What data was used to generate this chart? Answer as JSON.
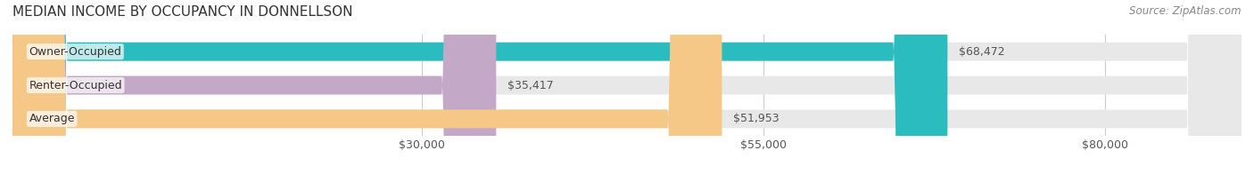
{
  "title": "MEDIAN INCOME BY OCCUPANCY IN DONNELLSON",
  "source": "Source: ZipAtlas.com",
  "categories": [
    "Owner-Occupied",
    "Renter-Occupied",
    "Average"
  ],
  "values": [
    68472,
    35417,
    51953
  ],
  "bar_colors": [
    "#2bbcbf",
    "#c4a8c8",
    "#f5c888"
  ],
  "bar_edge_colors": [
    "#2bbcbf",
    "#c4a8c8",
    "#f5c888"
  ],
  "bg_bar_color": "#efefef",
  "value_labels": [
    "$68,472",
    "$35,417",
    "$51,953"
  ],
  "tick_labels": [
    "$30,000",
    "$55,000",
    "$80,000"
  ],
  "tick_values": [
    30000,
    55000,
    80000
  ],
  "xmin": 0,
  "xmax": 90000,
  "title_fontsize": 11,
  "label_fontsize": 9,
  "source_fontsize": 8.5,
  "bar_height": 0.55,
  "background_color": "#ffffff"
}
